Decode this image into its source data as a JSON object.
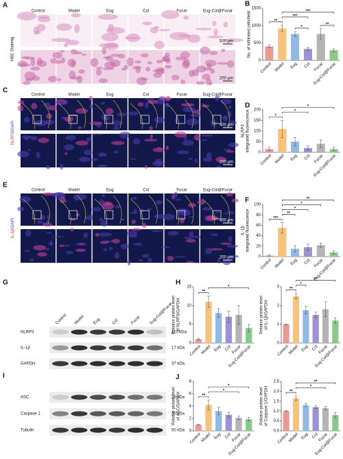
{
  "panels": {
    "A": {
      "letter": "A",
      "columns": [
        "Control",
        "Model",
        "Eug",
        "Col",
        "Fucar",
        "Eug-Col@Fucar"
      ],
      "row_label": "H&E Staining",
      "scale_bars": [
        "500 μm",
        "200 μm"
      ]
    },
    "C": {
      "letter": "C",
      "columns": [
        "Control",
        "Model",
        "Eug",
        "Col",
        "Fucar",
        "Eug-Col@Fucar"
      ],
      "row_label_marker": "NLRP3",
      "row_label_stain": "/DAPI",
      "scale_bars": [
        "400 μm",
        "200 μm"
      ]
    },
    "E": {
      "letter": "E",
      "columns": [
        "Control",
        "Model",
        "Eug",
        "Col",
        "Fucar",
        "Eug-Col@Fucar"
      ],
      "row_label_marker": "IL-1β",
      "row_label_stain": "/DAPI",
      "scale_bars": [
        "400 μm",
        "200 μm"
      ]
    },
    "G": {
      "letter": "G",
      "lanes": [
        "Control",
        "Model",
        "Eug",
        "Col",
        "Fucar",
        "Eug-Col@Fucar"
      ],
      "rows": [
        {
          "protein": "NLRP3",
          "size": "110 kDa"
        },
        {
          "protein": "IL-1β",
          "size": "17 kDa"
        },
        {
          "protein": "GAPDH",
          "size": "37 kDa"
        }
      ]
    },
    "I": {
      "letter": "I",
      "rows": [
        {
          "protein": "ASC",
          "size": "25 kDa"
        },
        {
          "protein": "Caspase 1",
          "size": "30 kDa"
        },
        {
          "protein": "Tubulin",
          "size": "50 kDa"
        }
      ]
    }
  },
  "chart_data": [
    {
      "type": "bar",
      "letter": "B",
      "ylabel": [
        "No. of infiltrated cells/field"
      ],
      "categories": [
        "Control",
        "Model",
        "Eug",
        "Col",
        "Fucar",
        "Eug-Col@Fucar"
      ],
      "values": [
        400,
        920,
        760,
        330,
        760,
        290
      ],
      "errors": [
        40,
        90,
        70,
        40,
        150,
        40
      ],
      "colors": [
        "#e89a96",
        "#f6c27c",
        "#93b8e3",
        "#9c92d4",
        "#b4b4b4",
        "#8cc88a"
      ],
      "ylim": [
        0,
        1500
      ],
      "yticks": [
        0,
        500,
        1000,
        1500
      ],
      "annotations": [
        {
          "text": "**",
          "from": 0,
          "to": 1
        },
        {
          "text": "*",
          "from": 2,
          "to": 3
        },
        {
          "text": "**",
          "from": 4,
          "to": 5
        },
        {
          "text": "***",
          "from": 1,
          "to": 3
        },
        {
          "text": "***",
          "from": 1,
          "to": 5
        }
      ]
    },
    {
      "type": "bar",
      "letter": "D",
      "ylabel": [
        "NLRP3",
        "integrated fluorescence"
      ],
      "categories": [
        "Control",
        "Model",
        "Eug",
        "Col",
        "Fucar",
        "Eug-Col@Fucar"
      ],
      "values": [
        15,
        110,
        50,
        20,
        40,
        15
      ],
      "errors": [
        8,
        40,
        20,
        10,
        18,
        8
      ],
      "colors": [
        "#e89a96",
        "#f6c27c",
        "#93b8e3",
        "#9c92d4",
        "#b4b4b4",
        "#8cc88a"
      ],
      "ylim": [
        0,
        200
      ],
      "yticks": [
        0,
        50,
        100,
        150,
        200
      ],
      "annotations": [
        {
          "text": "*",
          "from": 0,
          "to": 1
        },
        {
          "text": "*",
          "from": 1,
          "to": 3
        },
        {
          "text": "*",
          "from": 1,
          "to": 5
        }
      ]
    },
    {
      "type": "bar",
      "letter": "F",
      "ylabel": [
        "IL-1β",
        "integrated fluorescence"
      ],
      "categories": [
        "Control",
        "Model",
        "Eug",
        "Col",
        "Fucar",
        "Eug-Col@Fucar"
      ],
      "values": [
        2,
        55,
        15,
        18,
        22,
        8
      ],
      "errors": [
        1,
        10,
        6,
        6,
        4,
        3
      ],
      "colors": [
        "#e89a96",
        "#f6c27c",
        "#93b8e3",
        "#9c92d4",
        "#b4b4b4",
        "#8cc88a"
      ],
      "ylim": [
        0,
        100
      ],
      "yticks": [
        0,
        20,
        40,
        60,
        80,
        100
      ],
      "annotations": [
        {
          "text": "***",
          "from": 0,
          "to": 1
        },
        {
          "text": "**",
          "from": 1,
          "to": 2
        },
        {
          "text": "*",
          "from": 1,
          "to": 3
        },
        {
          "text": "*",
          "from": 1,
          "to": 4
        },
        {
          "text": "**",
          "from": 1,
          "to": 5
        }
      ]
    },
    {
      "type": "bar",
      "letter": "H",
      "ylabel": [
        "Relative protein level",
        "of NLRP3/GAPDH"
      ],
      "categories": [
        "Control",
        "Model",
        "Eug",
        "Col",
        "Fucar",
        "Eug-Col@Fucar"
      ],
      "values": [
        1,
        11,
        8,
        7,
        7.5,
        4
      ],
      "errors": [
        0.2,
        1.5,
        1.2,
        1.5,
        2.5,
        1
      ],
      "colors": [
        "#e89a96",
        "#f6c27c",
        "#93b8e3",
        "#9c92d4",
        "#b4b4b4",
        "#8cc88a"
      ],
      "ylim": [
        0,
        15
      ],
      "yticks": [
        0,
        5,
        10,
        15
      ],
      "annotations": [
        {
          "text": "**",
          "from": 0,
          "to": 1
        },
        {
          "text": "*",
          "from": 1,
          "to": 5
        }
      ]
    },
    {
      "type": "bar",
      "ylabel": [
        "Relative protein level",
        "of IL-1β/GAPDH"
      ],
      "categories": [
        "Control",
        "Model",
        "Eug",
        "Col",
        "Fucar",
        "Eug-Col@Fucar"
      ],
      "values": [
        1,
        2.5,
        1.75,
        1.5,
        1.8,
        1.2
      ],
      "errors": [
        0.02,
        0.15,
        0.2,
        0.15,
        0.4,
        0.15
      ],
      "colors": [
        "#e89a96",
        "#f6c27c",
        "#93b8e3",
        "#9c92d4",
        "#b4b4b4",
        "#8cc88a"
      ],
      "ylim": [
        0,
        3
      ],
      "yticks": [
        0,
        1,
        2,
        3
      ],
      "annotations": [
        {
          "text": "**",
          "from": 0,
          "to": 1
        },
        {
          "text": "*",
          "from": 1,
          "to": 2
        },
        {
          "text": "**",
          "from": 1,
          "to": 5
        }
      ]
    },
    {
      "type": "bar",
      "letter": "J",
      "ylabel": [
        "Relative protein level",
        "of ASC/GAPDH"
      ],
      "categories": [
        "Control",
        "Model",
        "Eug",
        "Col",
        "Fucar",
        "Eug-Col@Fucar"
      ],
      "values": [
        1,
        4.2,
        3.2,
        2.6,
        2.1,
        1.9
      ],
      "errors": [
        0.05,
        0.8,
        0.6,
        0.4,
        0.3,
        0.3
      ],
      "colors": [
        "#e89a96",
        "#f6c27c",
        "#93b8e3",
        "#9c92d4",
        "#b4b4b4",
        "#8cc88a"
      ],
      "ylim": [
        0,
        8
      ],
      "yticks": [
        0,
        2,
        4,
        6,
        8
      ],
      "annotations": [
        {
          "text": "**",
          "from": 0,
          "to": 1
        },
        {
          "text": "*",
          "from": 1,
          "to": 4
        },
        {
          "text": "*",
          "from": 1,
          "to": 5
        }
      ]
    },
    {
      "type": "bar",
      "ylabel": [
        "Relative protein level",
        "of Caspase 1/GAPDH"
      ],
      "categories": [
        "Control",
        "Model",
        "Eug",
        "Col",
        "Fucar",
        "Eug-Col@Fucar"
      ],
      "values": [
        1,
        1.65,
        1.3,
        1.2,
        1.15,
        0.8
      ],
      "errors": [
        0.02,
        0.12,
        0.08,
        0.08,
        0.08,
        0.12
      ],
      "colors": [
        "#e89a96",
        "#f6c27c",
        "#93b8e3",
        "#9c92d4",
        "#b4b4b4",
        "#8cc88a"
      ],
      "ylim": [
        0,
        2.5
      ],
      "yticks": [
        {
          "value": 0,
          "label": "0.0"
        },
        {
          "value": 0.5,
          "label": "0.5"
        },
        {
          "value": 1,
          "label": "1.0"
        },
        {
          "value": 1.5,
          "label": "1.5"
        },
        {
          "value": 2,
          "label": "2.0"
        },
        {
          "value": 2.5,
          "label": "2.5"
        }
      ],
      "annotations": [
        {
          "text": "**",
          "from": 0,
          "to": 1
        },
        {
          "text": "*",
          "from": 1,
          "to": 4
        },
        {
          "text": "**",
          "from": 1,
          "to": 5
        }
      ]
    }
  ]
}
